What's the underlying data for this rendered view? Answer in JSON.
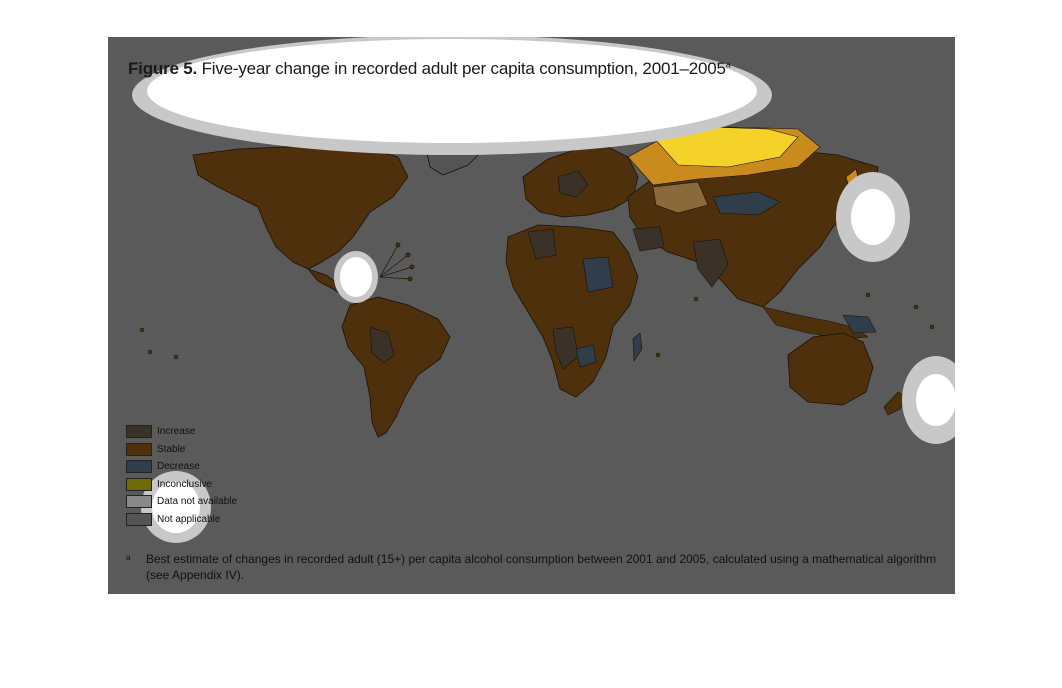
{
  "figure": {
    "label": "Figure 5.",
    "title": "Five-year change in recorded adult per capita consumption, 2001–2005",
    "title_sup": "a"
  },
  "colors": {
    "background": "#5a5a5a",
    "increase": "#3a3228",
    "stable": "#4e300c",
    "decrease": "#2f3e4a",
    "inconclusive": "#6e6a08",
    "not_available": "#8a8a8a",
    "not_applicable": "#555555",
    "highlight_yellow": "#f5d22a",
    "highlight_orange": "#c98b1e",
    "overlay_white": "#ffffff",
    "overlay_grey": "#c8c8c8"
  },
  "legend": [
    {
      "label": "Increase",
      "color": "#3a3228"
    },
    {
      "label": "Stable",
      "color": "#4e300c"
    },
    {
      "label": "Decrease",
      "color": "#2f3e4a"
    },
    {
      "label": "Inconclusive",
      "color": "#6e6a08"
    },
    {
      "label": "Data not available",
      "color": "#8a8a8a"
    },
    {
      "label": "Not applicable",
      "color": "#555555"
    }
  ],
  "footnote": {
    "mark": "a",
    "text": "Best estimate of changes in recorded adult (15+) per capita alcohol consumption between 2001 and 2005, calculated using a mathematical algorithm (see Appendix IV)."
  }
}
